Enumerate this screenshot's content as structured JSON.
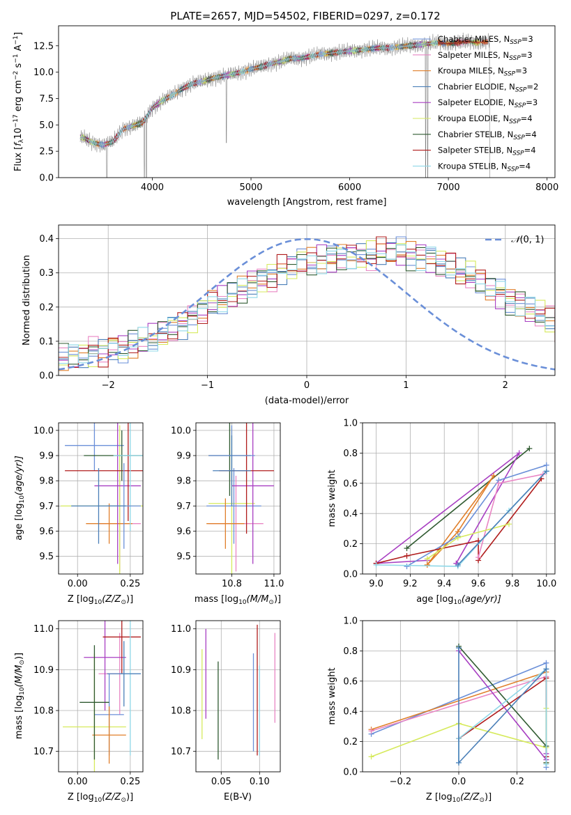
{
  "figure": {
    "title": "PLATE=2657, MJD=54502, FIBERID=0297, z=0.172"
  },
  "chart_data": [
    {
      "id": "spectrum",
      "type": "line",
      "xlabel": "wavelength [Angstrom, rest frame]",
      "ylabel_main": "Flux [",
      "ylabel_fl": "f",
      "ylabel_lambda": "λ",
      "ylabel_1e": "10",
      "ylabel_exp": "−17",
      "ylabel_rest": " erg cm",
      "ylabel_exp2": "−2",
      "ylabel_rest2": " s",
      "ylabel_exp3": "−1",
      "ylabel_rest3": " A",
      "ylabel_exp4": "−1",
      "ylabel_close": "]",
      "xlim": [
        3050,
        8080
      ],
      "ylim": [
        0,
        14.4
      ],
      "xticks": [
        "4000",
        "5000",
        "6000",
        "7000",
        "8000"
      ],
      "yticks": [
        "0.0",
        "2.5",
        "5.0",
        "7.5",
        "10.0",
        "12.5"
      ],
      "grid": false,
      "legend_position": "right",
      "data_x": [
        3300,
        3400,
        3500,
        3600,
        3700,
        3800,
        3900,
        4000,
        4100,
        4200,
        4300,
        4400,
        4500,
        4600,
        4700,
        4800,
        4900,
        5000,
        5100,
        5200,
        5300,
        5400,
        5500,
        5600,
        5700,
        5800,
        5900,
        6000,
        6100,
        6200,
        6300,
        6400,
        6500,
        6600,
        6700,
        6800,
        6900,
        7000,
        7100,
        7200,
        7300,
        7400
      ],
      "data_y": [
        3.8,
        3.3,
        3.1,
        3.4,
        4.6,
        4.9,
        5.2,
        6.6,
        7.3,
        7.8,
        8.4,
        8.9,
        9.1,
        9.4,
        9.6,
        9.8,
        10.0,
        10.3,
        10.5,
        10.8,
        11.0,
        11.3,
        11.3,
        11.5,
        11.7,
        11.8,
        11.9,
        12.0,
        12.1,
        12.2,
        12.3,
        12.3,
        12.4,
        12.5,
        12.6,
        12.7,
        12.8,
        12.7,
        12.8,
        12.9,
        12.8,
        12.9
      ],
      "model_end_x": [
        7350,
        7150,
        7000,
        7200,
        6800,
        7400,
        7300,
        7400,
        6900
      ],
      "dips_x": [
        3540,
        3920,
        3940,
        4750,
        6770,
        6790,
        7420
      ],
      "legend": [
        {
          "label": "Chabrier MILES, N",
          "sub": "SSP",
          "tail": "=3",
          "color": "#6a8fd8"
        },
        {
          "label": "Salpeter MILES, N",
          "sub": "SSP",
          "tail": "=3",
          "color": "#e986c4"
        },
        {
          "label": "Kroupa MILES, N",
          "sub": "SSP",
          "tail": "=3",
          "color": "#e07f2a"
        },
        {
          "label": "Chabrier ELODIE, N",
          "sub": "SSP",
          "tail": "=2",
          "color": "#4a7fb8"
        },
        {
          "label": "Salpeter ELODIE, N",
          "sub": "SSP",
          "tail": "=3",
          "color": "#a83fc2"
        },
        {
          "label": "Kroupa ELODIE, N",
          "sub": "SSP",
          "tail": "=4",
          "color": "#d6ea5c"
        },
        {
          "label": "Chabrier STELIB, N",
          "sub": "SSP",
          "tail": "=4",
          "color": "#2f5a30"
        },
        {
          "label": "Salpeter STELIB, N",
          "sub": "SSP",
          "tail": "=4",
          "color": "#b01c1c"
        },
        {
          "label": "Kroupa STELIB, N",
          "sub": "SSP",
          "tail": "=4",
          "color": "#8fd8e8"
        }
      ],
      "data_color": "#808080"
    },
    {
      "id": "residuals",
      "type": "histogram",
      "xlabel": "(data-model)/error",
      "ylabel": "Normed distribution",
      "xlim": [
        -2.5,
        2.5
      ],
      "ylim": [
        0,
        0.44
      ],
      "xticks": [
        "−2",
        "−1",
        "0",
        "1",
        "2"
      ],
      "yticks": [
        "0.0",
        "0.1",
        "0.2",
        "0.3",
        "0.4"
      ],
      "grid": true,
      "legend": {
        "label_pre": "𝒩",
        "label_post": "(0, 1)",
        "color": "#6a8fd8",
        "position": "top-right"
      },
      "bin_width": 0.1,
      "base_values": [
        0.05,
        0.05,
        0.06,
        0.07,
        0.07,
        0.08,
        0.08,
        0.09,
        0.1,
        0.11,
        0.12,
        0.14,
        0.15,
        0.17,
        0.19,
        0.21,
        0.22,
        0.23,
        0.25,
        0.27,
        0.28,
        0.29,
        0.31,
        0.32,
        0.33,
        0.33,
        0.34,
        0.34,
        0.35,
        0.35,
        0.35,
        0.35,
        0.36,
        0.36,
        0.36,
        0.35,
        0.35,
        0.34,
        0.33,
        0.32,
        0.3,
        0.29,
        0.27,
        0.26,
        0.24,
        0.22,
        0.21,
        0.19,
        0.18,
        0.16,
        0.14,
        0.13,
        0.12,
        0.1,
        0.09,
        0.08,
        0.07,
        0.06,
        0.05,
        0.05
      ],
      "hist_colors": [
        "#6a8fd8",
        "#e986c4",
        "#e07f2a",
        "#4a7fb8",
        "#a83fc2",
        "#d6ea5c",
        "#2f5a30",
        "#b01c1c",
        "#8fd8e8"
      ]
    },
    {
      "id": "age_vs_Z",
      "type": "errorbar",
      "xlabel_pre": "Z [log",
      "xlabel_sub": "10",
      "xlabel_post": "(Z/Z",
      "xlabel_sun": "⊙",
      "xlabel_end": ")]",
      "ylabel_pre": "age  [log",
      "ylabel_sub": "10",
      "ylabel_post": "(age/yr)]",
      "xlim": [
        -0.09,
        0.31
      ],
      "ylim": [
        9.43,
        10.03
      ],
      "xticks": [
        "0.00",
        "0.25"
      ],
      "yticks": [
        "9.5",
        "9.6",
        "9.7",
        "9.8",
        "9.9",
        "10.0"
      ],
      "grid": true,
      "points": [
        {
          "x": 0.2,
          "y": 9.63,
          "xerr": 0.1,
          "yerr": 0.19,
          "color": "#e986c4"
        },
        {
          "x": 0.2,
          "y": 9.7,
          "xerr": 0.28,
          "yerr": 0.32,
          "color": "#d6ea5c"
        },
        {
          "x": 0.08,
          "y": 9.94,
          "xerr": 0.14,
          "yerr": 0.1,
          "color": "#6a8fd8"
        },
        {
          "x": 0.15,
          "y": 9.63,
          "xerr": 0.11,
          "yerr": 0.08,
          "color": "#e07f2a"
        },
        {
          "x": 0.19,
          "y": 9.78,
          "xerr": 0.11,
          "yerr": 0.31,
          "color": "#a83fc2"
        },
        {
          "x": 0.24,
          "y": 9.84,
          "xerr": 0.3,
          "yerr": 0.2,
          "color": "#b01c1c"
        },
        {
          "x": 0.21,
          "y": 9.9,
          "xerr": 0.18,
          "yerr": 0.1,
          "color": "#2f5a30"
        },
        {
          "x": 0.25,
          "y": 9.9,
          "xerr": 0.08,
          "yerr": 0.3,
          "color": "#8fd8e8"
        },
        {
          "x": 0.22,
          "y": 9.7,
          "xerr": 0.08,
          "yerr": 0.17,
          "color": "#6a8fd8"
        },
        {
          "x": 0.1,
          "y": 9.7,
          "xerr": 0.13,
          "yerr": 0.15,
          "color": "#4a7fb8"
        }
      ]
    },
    {
      "id": "age_vs_mass",
      "type": "errorbar",
      "xlabel_pre": "mass [log",
      "xlabel_sub": "10",
      "xlabel_post": "(M/M",
      "xlabel_sun": "⊙",
      "xlabel_end": ")]",
      "xlim": [
        10.63,
        11.03
      ],
      "ylim": [
        9.43,
        10.03
      ],
      "xticks": [
        "10.8",
        "11.0"
      ],
      "yticks": [
        "9.5",
        "9.6",
        "9.7",
        "9.8",
        "9.9",
        "10.0"
      ],
      "grid": true,
      "points": [
        {
          "x": 10.82,
          "y": 9.63,
          "xerr": 0.13,
          "yerr": 0.19,
          "color": "#e986c4"
        },
        {
          "x": 10.8,
          "y": 9.71,
          "xerr": 0.11,
          "yerr": 0.3,
          "color": "#d6ea5c"
        },
        {
          "x": 10.81,
          "y": 9.7,
          "xerr": 0.13,
          "yerr": 0.15,
          "color": "#6a8fd8"
        },
        {
          "x": 10.77,
          "y": 9.63,
          "xerr": 0.09,
          "yerr": 0.1,
          "color": "#e07f2a"
        },
        {
          "x": 10.9,
          "y": 9.78,
          "xerr": 0.1,
          "yerr": 0.31,
          "color": "#a83fc2"
        },
        {
          "x": 10.87,
          "y": 9.84,
          "xerr": 0.13,
          "yerr": 0.25,
          "color": "#b01c1c"
        },
        {
          "x": 10.79,
          "y": 9.9,
          "xerr": 0.1,
          "yerr": 0.16,
          "color": "#2f5a30"
        },
        {
          "x": 10.8,
          "y": 9.9,
          "xerr": 0.11,
          "yerr": 0.12,
          "color": "#6a8fd8"
        },
        {
          "x": 10.8,
          "y": 9.84,
          "xerr": 0.09,
          "yerr": 0.14,
          "color": "#4a7fb8"
        }
      ]
    },
    {
      "id": "weight_vs_age",
      "type": "line",
      "xlabel_pre": "age  [log",
      "xlabel_sub": "10",
      "xlabel_post": "(age/yr)]",
      "ylabel": "mass weight",
      "xlim": [
        8.92,
        10.05
      ],
      "ylim": [
        0,
        1.0
      ],
      "xticks": [
        "9.0",
        "9.2",
        "9.4",
        "9.6",
        "9.8",
        "10.0"
      ],
      "yticks": [
        "0.0",
        "0.2",
        "0.4",
        "0.6",
        "0.8",
        "1.0"
      ],
      "grid": true,
      "series": [
        {
          "color": "#2f5a30",
          "x": [
            9.18,
            9.9
          ],
          "y": [
            0.17,
            0.83
          ]
        },
        {
          "color": "#a83fc2",
          "x": [
            9.47,
            9.84,
            9.0,
            9.3
          ],
          "y": [
            0.07,
            0.8,
            0.07,
            0.09
          ]
        },
        {
          "color": "#e07f2a",
          "x": [
            9.3,
            9.48,
            9.69,
            9.3
          ],
          "y": [
            0.06,
            0.28,
            0.65,
            0.06
          ]
        },
        {
          "color": "#6a8fd8",
          "x": [
            9.18,
            9.48,
            9.72,
            10.0
          ],
          "y": [
            0.05,
            0.25,
            0.62,
            0.72
          ]
        },
        {
          "color": "#b01c1c",
          "x": [
            9.0,
            9.18,
            9.6,
            9.6,
            9.97
          ],
          "y": [
            0.07,
            0.12,
            0.22,
            0.09,
            0.63
          ]
        },
        {
          "color": "#e986c4",
          "x": [
            9.6,
            9.72,
            9.98
          ],
          "y": [
            0.11,
            0.6,
            0.66
          ]
        },
        {
          "color": "#d6ea5c",
          "x": [
            9.3,
            9.48,
            9.78
          ],
          "y": [
            0.1,
            0.24,
            0.33
          ]
        },
        {
          "color": "#8fd8e8",
          "x": [
            9.0,
            9.48,
            9.78,
            10.0
          ],
          "y": [
            0.06,
            0.05,
            0.42,
            0.68
          ]
        },
        {
          "color": "#4a7fb8",
          "x": [
            9.48,
            10.0
          ],
          "y": [
            0.06,
            0.68
          ]
        }
      ]
    },
    {
      "id": "mass_vs_Z",
      "type": "errorbar",
      "xlabel_pre": "Z [log",
      "xlabel_sub": "10",
      "xlabel_post": "(Z/Z",
      "xlabel_sun": "⊙",
      "xlabel_end": ")]",
      "ylabel_pre": "mass [log",
      "ylabel_sub": "10",
      "ylabel_post": "(M/M",
      "ylabel_sun": "⊙",
      "ylabel_end": ")]",
      "xlim": [
        -0.09,
        0.31
      ],
      "ylim": [
        10.65,
        11.02
      ],
      "xticks": [
        "0.00",
        "0.25"
      ],
      "yticks": [
        "10.7",
        "10.8",
        "10.9",
        "11.0"
      ],
      "grid": true,
      "points": [
        {
          "x": 0.2,
          "y": 10.89,
          "xerr": 0.1,
          "yerr": 0.1,
          "color": "#e986c4"
        },
        {
          "x": 0.08,
          "y": 10.76,
          "xerr": 0.15,
          "yerr": 0.18,
          "color": "#d6ea5c"
        },
        {
          "x": 0.15,
          "y": 10.79,
          "xerr": 0.07,
          "yerr": 0.1,
          "color": "#6a8fd8"
        },
        {
          "x": 0.15,
          "y": 10.74,
          "xerr": 0.08,
          "yerr": 0.07,
          "color": "#e07f2a"
        },
        {
          "x": 0.13,
          "y": 10.93,
          "xerr": 0.1,
          "yerr": 0.13,
          "color": "#a83fc2"
        },
        {
          "x": 0.21,
          "y": 10.98,
          "xerr": 0.09,
          "yerr": 0.09,
          "color": "#b01c1c"
        },
        {
          "x": 0.08,
          "y": 10.82,
          "xerr": 0.07,
          "yerr": 0.14,
          "color": "#2f5a30"
        },
        {
          "x": 0.25,
          "y": 10.89,
          "xerr": 0.05,
          "yerr": 0.2,
          "color": "#8fd8e8"
        },
        {
          "x": 0.22,
          "y": 10.89,
          "xerr": 0.08,
          "yerr": 0.08,
          "color": "#4a7fb8"
        }
      ]
    },
    {
      "id": "mass_vs_ebv",
      "type": "errorbar",
      "xlabel": "E(B-V)",
      "xlim": [
        0.017,
        0.127
      ],
      "ylim": [
        10.65,
        11.02
      ],
      "xticks": [
        "0.05",
        "0.10"
      ],
      "yticks": [
        "10.7",
        "10.8",
        "10.9",
        "11.0"
      ],
      "grid": true,
      "points": [
        {
          "x": 0.03,
          "y": 10.89,
          "xerr": 0,
          "yerr": 0.11,
          "color": "#a83fc2"
        },
        {
          "x": 0.025,
          "y": 10.84,
          "xerr": 0,
          "yerr": 0.11,
          "color": "#d6ea5c"
        },
        {
          "x": 0.046,
          "y": 10.8,
          "xerr": 0,
          "yerr": 0.12,
          "color": "#2f5a30"
        },
        {
          "x": 0.092,
          "y": 10.82,
          "xerr": 0,
          "yerr": 0.12,
          "color": "#6a8fd8"
        },
        {
          "x": 0.097,
          "y": 10.85,
          "xerr": 0,
          "yerr": 0.16,
          "color": "#b01c1c"
        },
        {
          "x": 0.1,
          "y": 10.8,
          "xerr": 0,
          "yerr": 0.11,
          "color": "#8fd8e8"
        },
        {
          "x": 0.12,
          "y": 10.88,
          "xerr": 0,
          "yerr": 0.11,
          "color": "#e986c4"
        }
      ]
    },
    {
      "id": "weight_vs_Z",
      "type": "line",
      "xlabel_pre": "Z [log",
      "xlabel_sub": "10",
      "xlabel_post": "(Z/Z",
      "xlabel_sun": "⊙",
      "xlabel_end": ")]",
      "ylabel": "mass weight",
      "xlim": [
        -0.33,
        0.33
      ],
      "ylim": [
        0,
        1.0
      ],
      "xticks": [
        "−0.2",
        "0.0",
        "0.2"
      ],
      "yticks": [
        "0.0",
        "0.2",
        "0.4",
        "0.6",
        "0.8",
        "1.0"
      ],
      "grid": true,
      "series": [
        {
          "color": "#6a8fd8",
          "x": [
            -0.3,
            0.3,
            0.3
          ],
          "y": [
            0.25,
            0.72,
            0.03
          ]
        },
        {
          "color": "#e07f2a",
          "x": [
            -0.3,
            0.3,
            0.3
          ],
          "y": [
            0.28,
            0.66,
            0.06
          ]
        },
        {
          "color": "#e986c4",
          "x": [
            -0.3,
            0.3
          ],
          "y": [
            0.27,
            0.63
          ]
        },
        {
          "color": "#b01c1c",
          "x": [
            0.0,
            0.3,
            0.3
          ],
          "y": [
            0.22,
            0.62,
            0.1
          ]
        },
        {
          "color": "#d6ea5c",
          "x": [
            -0.3,
            0.0,
            0.3,
            0.3
          ],
          "y": [
            0.1,
            0.32,
            0.16,
            0.42
          ]
        },
        {
          "color": "#2f5a30",
          "x": [
            0.0,
            0.3,
            0.3
          ],
          "y": [
            0.83,
            0.17,
            0.06
          ]
        },
        {
          "color": "#a83fc2",
          "x": [
            0.0,
            0.3,
            0.3
          ],
          "y": [
            0.8,
            0.08,
            0.12
          ]
        },
        {
          "color": "#8fd8e8",
          "x": [
            0.0,
            0.0,
            0.3,
            0.3
          ],
          "y": [
            0.06,
            0.22,
            0.68,
            0.05
          ]
        },
        {
          "color": "#4a7fb8",
          "x": [
            0.0,
            0.0,
            0.3
          ],
          "y": [
            0.82,
            0.06,
            0.68
          ]
        }
      ]
    }
  ]
}
